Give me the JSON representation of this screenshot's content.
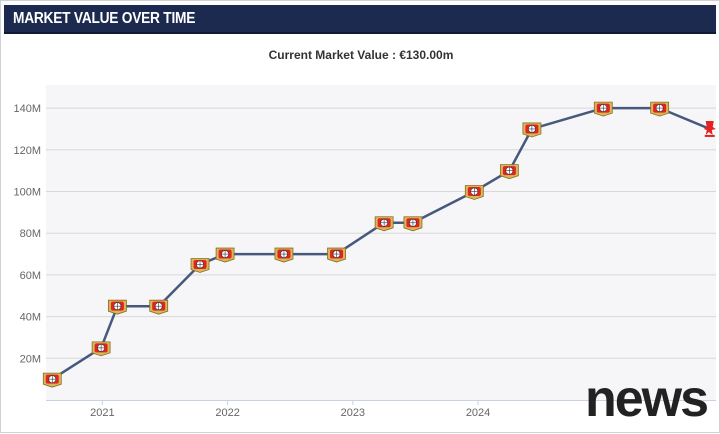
{
  "header": {
    "title": "MARKET VALUE OVER TIME"
  },
  "subtitle": "Current Market Value : €130.00m",
  "watermark": "news",
  "colors": {
    "line": "#46597c",
    "grid": "#d8d8d8",
    "plot_bg": "#f6f6f9",
    "badge_red": "#e32221",
    "badge_gold": "#d6b85a"
  },
  "chart_data": {
    "type": "line",
    "title": "MARKET VALUE OVER TIME",
    "subtitle": "Current Market Value : €130.00m",
    "xlabel": "",
    "ylabel": "",
    "ylim": [
      0,
      150
    ],
    "xlim": [
      2020.55,
      2025.9
    ],
    "grid": true,
    "y_ticks": [
      {
        "value": 20,
        "label": "20M"
      },
      {
        "value": 40,
        "label": "40M"
      },
      {
        "value": 60,
        "label": "60M"
      },
      {
        "value": 80,
        "label": "80M"
      },
      {
        "value": 100,
        "label": "100M"
      },
      {
        "value": 120,
        "label": "120M"
      },
      {
        "value": 140,
        "label": "140M"
      }
    ],
    "x_ticks": [
      {
        "value": 2021,
        "label": "2021"
      },
      {
        "value": 2022,
        "label": "2022"
      },
      {
        "value": 2023,
        "label": "2023"
      },
      {
        "value": 2024,
        "label": "2024"
      }
    ],
    "series": [
      {
        "name": "Market value",
        "points": [
          {
            "x": 2020.6,
            "y": 10,
            "club": "Bayer 04 Leverkusen"
          },
          {
            "x": 2020.99,
            "y": 25,
            "club": "Bayer 04 Leverkusen"
          },
          {
            "x": 2021.12,
            "y": 45,
            "club": "Bayer 04 Leverkusen"
          },
          {
            "x": 2021.45,
            "y": 45,
            "club": "Bayer 04 Leverkusen"
          },
          {
            "x": 2021.78,
            "y": 65,
            "club": "Bayer 04 Leverkusen"
          },
          {
            "x": 2021.98,
            "y": 70,
            "club": "Bayer 04 Leverkusen"
          },
          {
            "x": 2022.45,
            "y": 70,
            "club": "Bayer 04 Leverkusen"
          },
          {
            "x": 2022.87,
            "y": 70,
            "club": "Bayer 04 Leverkusen"
          },
          {
            "x": 2023.25,
            "y": 85,
            "club": "Bayer 04 Leverkusen"
          },
          {
            "x": 2023.48,
            "y": 85,
            "club": "Bayer 04 Leverkusen"
          },
          {
            "x": 2023.97,
            "y": 100,
            "club": "Bayer 04 Leverkusen"
          },
          {
            "x": 2024.25,
            "y": 110,
            "club": "Bayer 04 Leverkusen"
          },
          {
            "x": 2024.43,
            "y": 130,
            "club": "Bayer 04 Leverkusen"
          },
          {
            "x": 2025.0,
            "y": 140,
            "club": "Bayer 04 Leverkusen"
          },
          {
            "x": 2025.45,
            "y": 140,
            "club": "Bayer 04 Leverkusen"
          },
          {
            "x": 2025.85,
            "y": 130,
            "club": "Liverpool FC"
          }
        ]
      }
    ]
  }
}
